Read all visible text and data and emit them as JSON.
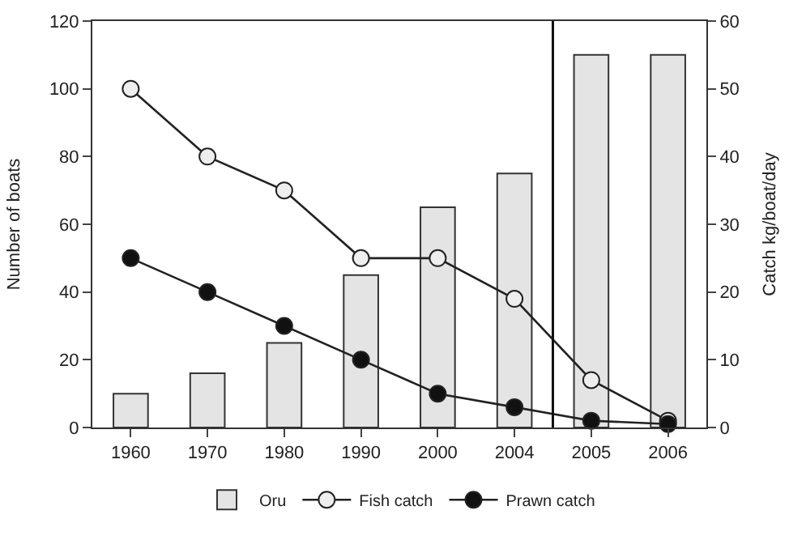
{
  "chart_data": {
    "type": "bar",
    "categories": [
      "1960",
      "1970",
      "1980",
      "1990",
      "2000",
      "2004",
      "2005",
      "2006"
    ],
    "ylabel": "Number of boats",
    "y2label": "Catch kg/boat/day",
    "ylim": [
      0,
      120
    ],
    "yticks": [
      0,
      20,
      40,
      60,
      80,
      100,
      120
    ],
    "y2lim": [
      0,
      60
    ],
    "y2ticks": [
      0,
      10,
      20,
      30,
      40,
      50,
      60
    ],
    "series": [
      {
        "name": "Oru",
        "color": "#e4e4e4",
        "values": [
          10,
          16,
          25,
          45,
          65,
          75,
          110,
          110
        ]
      },
      {
        "name": "Fish catch",
        "type": "line",
        "axis": "y2",
        "color": "#222222",
        "colors": [
          "#eeeeee",
          "#eeeeee",
          "#eeeeee",
          "#eeeeee",
          "#eeeeee",
          "#eeeeee",
          "#eeeeee",
          "#eeeeee"
        ],
        "values": [
          50,
          40,
          35,
          25,
          25,
          19,
          7,
          1
        ]
      },
      {
        "name": "Prawn catch",
        "type": "line",
        "axis": "y2",
        "color": "#222222",
        "colors": [
          "#111111",
          "#111111",
          "#111111",
          "#111111",
          "#111111",
          "#111111",
          "#111111",
          "#111111"
        ],
        "values": [
          25,
          20,
          15,
          10,
          5,
          3,
          1,
          0.5
        ]
      }
    ],
    "marker": "circle",
    "line_style": "solid",
    "legend": "bottom"
  }
}
